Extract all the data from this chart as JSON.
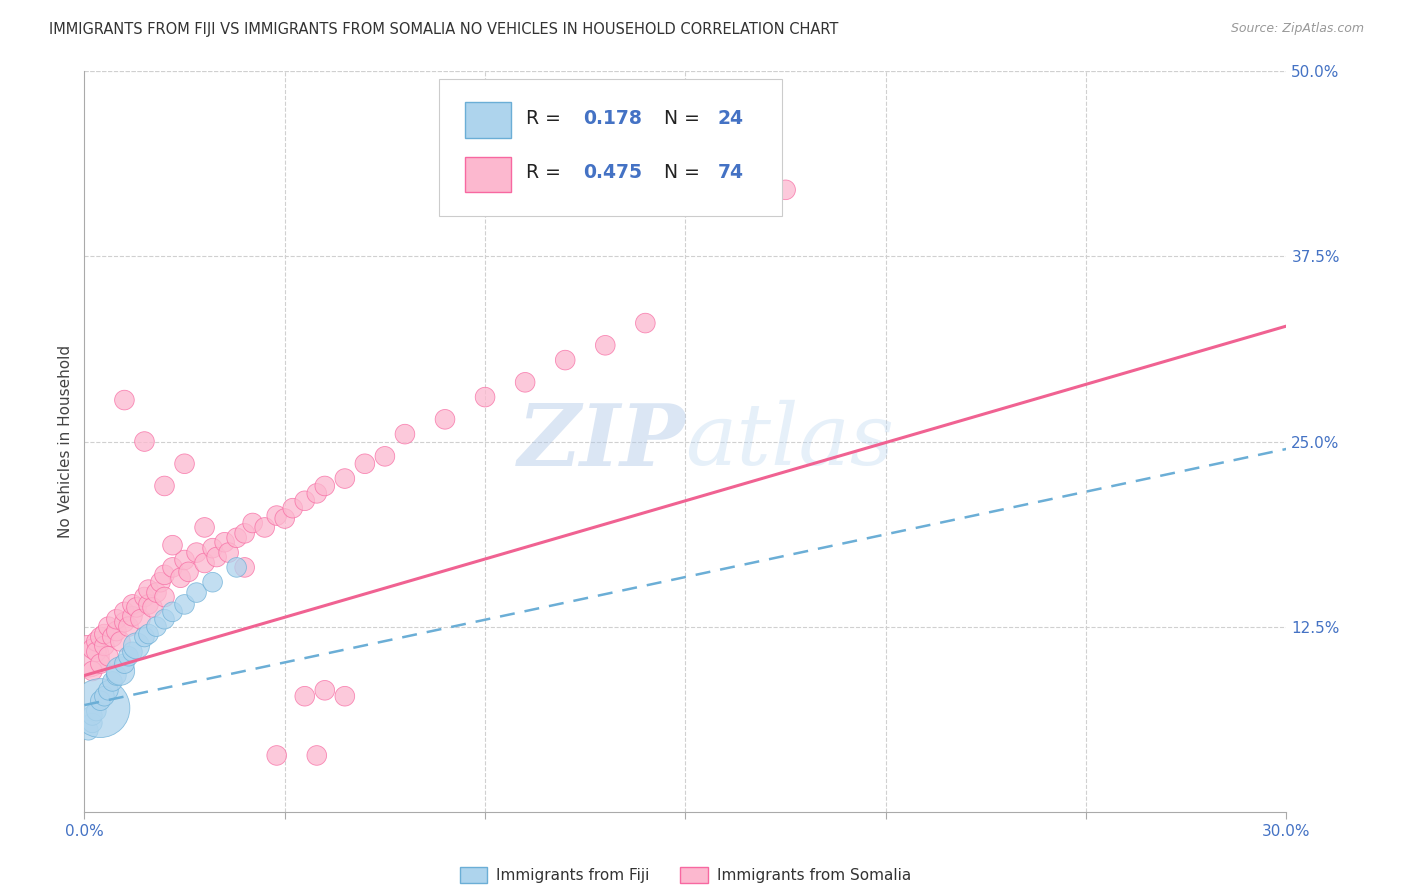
{
  "title": "IMMIGRANTS FROM FIJI VS IMMIGRANTS FROM SOMALIA NO VEHICLES IN HOUSEHOLD CORRELATION CHART",
  "source": "Source: ZipAtlas.com",
  "ylabel": "No Vehicles in Household",
  "xlim": [
    0.0,
    0.3
  ],
  "ylim": [
    0.0,
    0.5
  ],
  "xtick_vals": [
    0.0,
    0.05,
    0.1,
    0.15,
    0.2,
    0.25,
    0.3
  ],
  "xtick_labels": [
    "0.0%",
    "",
    "",
    "",
    "",
    "",
    "30.0%"
  ],
  "ytick_vals": [
    0.125,
    0.25,
    0.375,
    0.5
  ],
  "ytick_labels": [
    "12.5%",
    "25.0%",
    "37.5%",
    "50.0%"
  ],
  "fiji_face_color": "#aed4ed",
  "fiji_edge_color": "#6baed6",
  "somalia_face_color": "#fcb8cf",
  "somalia_edge_color": "#f768a1",
  "fiji_R": 0.178,
  "fiji_N": 24,
  "somalia_R": 0.475,
  "somalia_N": 74,
  "watermark_zip": "ZIP",
  "watermark_atlas": "atlas",
  "legend_fiji": "Immigrants from Fiji",
  "legend_somalia": "Immigrants from Somalia",
  "fiji_line_color": "#6baed6",
  "somalia_line_color": "#f06292",
  "tick_color": "#4472c4",
  "grid_color": "#d0d0d0",
  "legend_R_color": "#000000",
  "legend_val_color": "#4472c4",
  "scatter_size": 200,
  "fiji_big_size": 1800,
  "somalia_big_size": 900,
  "fiji_line_y0": 0.072,
  "fiji_line_y1": 0.245,
  "somalia_line_y0": 0.092,
  "somalia_line_y1": 0.328
}
